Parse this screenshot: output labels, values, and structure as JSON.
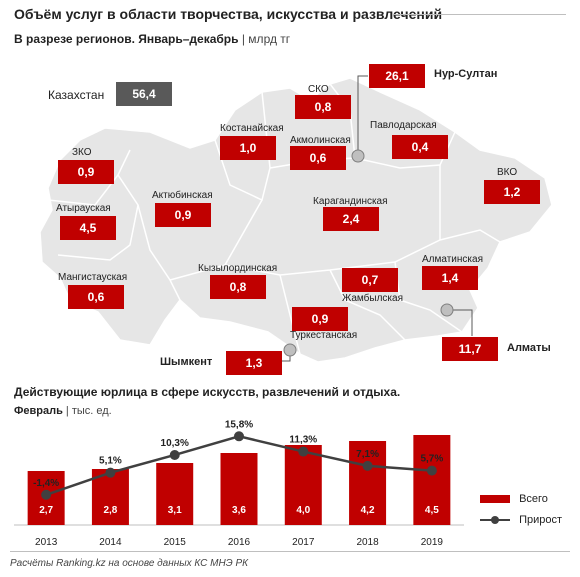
{
  "title": "Объём услуг в области творчества, искусства и развлечений",
  "subtitle": "В разрезе регионов. Январь–декабрь",
  "subtitle_unit": "| млрд тг",
  "colors": {
    "accent": "#c00000",
    "kz_box": "#595959",
    "map_fill": "#e6e6e6",
    "line": "#404040"
  },
  "map": {
    "kazakhstan": {
      "name": "Казахстан",
      "value": "56,4"
    },
    "regions": [
      {
        "name": "ЗКО",
        "value": "0,9"
      },
      {
        "name": "Атырауская",
        "value": "4,5"
      },
      {
        "name": "Мангистауская",
        "value": "0,6"
      },
      {
        "name": "Актюбинская",
        "value": "0,9"
      },
      {
        "name": "Костанайская",
        "value": "1,0"
      },
      {
        "name": "СКО",
        "value": "0,8"
      },
      {
        "name": "Акмолинская",
        "value": "0,6"
      },
      {
        "name": "Павлодарская",
        "value": "0,4"
      },
      {
        "name": "ВКО",
        "value": "1,2"
      },
      {
        "name": "Карагандинская",
        "value": "2,4"
      },
      {
        "name": "Кызылординская",
        "value": "0,8"
      },
      {
        "name": "Жамбылская",
        "value": "0,7"
      },
      {
        "name": "Алматинская",
        "value": "1,4"
      },
      {
        "name": "Туркестанская",
        "value": "0,9"
      }
    ],
    "cities": [
      {
        "name": "Нур-Султан",
        "value": "26,1"
      },
      {
        "name": "Алматы",
        "value": "11,7"
      },
      {
        "name": "Шымкент",
        "value": "1,3"
      }
    ]
  },
  "section2": {
    "title": "Действующие юрлица в сфере искусств, развлечений и отдыха.",
    "subtitle": "Февраль",
    "unit": "| тыс. ед."
  },
  "chart_data": {
    "type": "bar",
    "categories": [
      "2013",
      "2014",
      "2015",
      "2016",
      "2017",
      "2018",
      "2019"
    ],
    "series": [
      {
        "name": "Всего",
        "type": "bar",
        "values": [
          2.7,
          2.8,
          3.1,
          3.6,
          4.0,
          4.2,
          4.5
        ],
        "labels": [
          "2,7",
          "2,8",
          "3,1",
          "3,6",
          "4,0",
          "4,2",
          "4,5"
        ]
      },
      {
        "name": "Прирост",
        "type": "line",
        "values": [
          -1.4,
          5.1,
          10.3,
          15.8,
          11.3,
          7.1,
          5.7
        ],
        "labels": [
          "-1,4%",
          "5,1%",
          "10,3%",
          "15,8%",
          "11,3%",
          "7,1%",
          "5,7%"
        ]
      }
    ]
  },
  "footer": "Расчёты Ranking.kz на основе данных КС МНЭ РК"
}
